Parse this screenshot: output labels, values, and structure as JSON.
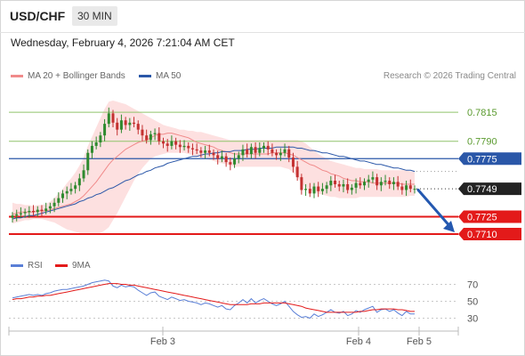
{
  "header": {
    "symbol": "USD/CHF",
    "timeframe": "30 MIN"
  },
  "datetime": "Wednesday, February 4, 2026 7:21:04 AM CET",
  "legend": {
    "ma20": {
      "label": "MA 20 + Bollinger Bands",
      "color": "#f08a8a"
    },
    "ma50": {
      "label": "MA 50",
      "color": "#2a57a8"
    }
  },
  "credit": "Research © 2026 Trading Central",
  "rsi_legend": {
    "rsi": {
      "label": "RSI",
      "color": "#5a7fd6"
    },
    "ma9": {
      "label": "9MA",
      "color": "#e31a1a"
    }
  },
  "colors": {
    "up": "#2f8a2f",
    "down": "#c43131",
    "resistance": "#8fc46b",
    "support": "#e31a1a",
    "pivot": "#2a57a8",
    "band": "#fde0e0"
  },
  "chart_data": [
    {
      "type": "candlestick",
      "price_ylim": [
        0.7697,
        0.7835
      ],
      "x_labels": [
        "Feb 3",
        "Feb 4",
        "Feb 5"
      ],
      "levels": [
        {
          "value": 0.7815,
          "label": "0.7815",
          "kind": "resistance"
        },
        {
          "value": 0.779,
          "label": "0.7790",
          "kind": "resistance"
        },
        {
          "value": 0.7775,
          "label": "0.7775",
          "kind": "pivot"
        },
        {
          "value": 0.7725,
          "label": "0.7725",
          "kind": "support"
        },
        {
          "value": 0.771,
          "label": "0.7710",
          "kind": "support"
        }
      ],
      "last_price": {
        "value": 0.7749,
        "label": "0.7749"
      },
      "forecast": {
        "from": 0.7748,
        "to": 0.771,
        "direction": "down"
      },
      "close": [
        0.7726,
        0.7727,
        0.7728,
        0.7729,
        0.773,
        0.7729,
        0.7731,
        0.773,
        0.7732,
        0.7734,
        0.7737,
        0.7741,
        0.7745,
        0.7747,
        0.7749,
        0.7752,
        0.7758,
        0.7765,
        0.778,
        0.7786,
        0.7789,
        0.7795,
        0.7805,
        0.7814,
        0.7806,
        0.78,
        0.7808,
        0.7804,
        0.7806,
        0.7805,
        0.78,
        0.7795,
        0.7791,
        0.7796,
        0.7797,
        0.779,
        0.7788,
        0.7786,
        0.779,
        0.7787,
        0.7785,
        0.7786,
        0.7784,
        0.7783,
        0.7782,
        0.778,
        0.7782,
        0.778,
        0.7778,
        0.7775,
        0.7777,
        0.7772,
        0.777,
        0.7775,
        0.7778,
        0.7783,
        0.7779,
        0.7785,
        0.778,
        0.7784,
        0.7786,
        0.7783,
        0.778,
        0.7778,
        0.778,
        0.7783,
        0.7776,
        0.7768,
        0.7759,
        0.7748,
        0.7749,
        0.7745,
        0.7751,
        0.7747,
        0.7749,
        0.7752,
        0.7756,
        0.7753,
        0.7751,
        0.7753,
        0.7748,
        0.775,
        0.7754,
        0.7752,
        0.7755,
        0.7757,
        0.7759,
        0.7752,
        0.7755,
        0.7756,
        0.7753,
        0.7755,
        0.7751,
        0.7748,
        0.7752,
        0.7749,
        0.7749
      ],
      "ma20": [
        0.7727,
        0.7728,
        0.7729,
        0.7729,
        0.7729,
        0.7729,
        0.773,
        0.773,
        0.773,
        0.7731,
        0.7732,
        0.7733,
        0.7734,
        0.7735,
        0.7736,
        0.7738,
        0.774,
        0.7743,
        0.7747,
        0.7751,
        0.7755,
        0.776,
        0.7765,
        0.777,
        0.7774,
        0.7777,
        0.778,
        0.7783,
        0.7785,
        0.7787,
        0.7789,
        0.779,
        0.7791,
        0.7793,
        0.7795,
        0.7796,
        0.7796,
        0.7797,
        0.7797,
        0.7796,
        0.7795,
        0.7794,
        0.7793,
        0.7791,
        0.7789,
        0.7788,
        0.7787,
        0.7786,
        0.7785,
        0.7783,
        0.7782,
        0.7781,
        0.778,
        0.7779,
        0.7779,
        0.7779,
        0.7779,
        0.7779,
        0.7779,
        0.7779,
        0.7779,
        0.7779,
        0.778,
        0.778,
        0.778,
        0.778,
        0.7779,
        0.7778,
        0.7776,
        0.7774,
        0.7772,
        0.777,
        0.7769,
        0.7767,
        0.7765,
        0.7764,
        0.7762,
        0.7761,
        0.776,
        0.7758,
        0.7757,
        0.7756,
        0.7756,
        0.7755,
        0.7755,
        0.7755,
        0.7754,
        0.7754,
        0.7754,
        0.7754,
        0.7754,
        0.7754,
        0.7754,
        0.7753,
        0.7753,
        0.7753,
        0.7753
      ],
      "bb_upper": [
        0.7737,
        0.7736,
        0.7736,
        0.7735,
        0.7735,
        0.7734,
        0.7735,
        0.7735,
        0.7736,
        0.7738,
        0.7741,
        0.7745,
        0.7749,
        0.7754,
        0.7758,
        0.7763,
        0.7769,
        0.7776,
        0.7786,
        0.7794,
        0.7802,
        0.781,
        0.7818,
        0.7824,
        0.7825,
        0.7824,
        0.7823,
        0.7822,
        0.782,
        0.7818,
        0.7816,
        0.7814,
        0.7812,
        0.781,
        0.7808,
        0.7806,
        0.7804,
        0.7803,
        0.7802,
        0.7801,
        0.78,
        0.78,
        0.7799,
        0.7799,
        0.7798,
        0.7798,
        0.7797,
        0.7796,
        0.7795,
        0.7794,
        0.7793,
        0.7792,
        0.7791,
        0.7791,
        0.7791,
        0.7791,
        0.7791,
        0.7791,
        0.7791,
        0.7791,
        0.7791,
        0.7791,
        0.7791,
        0.7791,
        0.7791,
        0.7791,
        0.7791,
        0.7791,
        0.7791,
        0.779,
        0.7788,
        0.7785,
        0.7782,
        0.7779,
        0.7777,
        0.7775,
        0.7773,
        0.7772,
        0.7771,
        0.777,
        0.7769,
        0.7768,
        0.7767,
        0.7767,
        0.7766,
        0.7766,
        0.7766,
        0.7766,
        0.7765,
        0.7765,
        0.7765,
        0.7765,
        0.7765,
        0.7765,
        0.7765,
        0.7764,
        0.7764
      ],
      "bb_lower": [
        0.7719,
        0.772,
        0.7721,
        0.7722,
        0.7722,
        0.7723,
        0.7723,
        0.7723,
        0.7722,
        0.7721,
        0.772,
        0.7718,
        0.7716,
        0.7714,
        0.7713,
        0.7712,
        0.7711,
        0.771,
        0.771,
        0.771,
        0.771,
        0.7711,
        0.7713,
        0.7716,
        0.7722,
        0.7728,
        0.7735,
        0.7742,
        0.7749,
        0.7756,
        0.7762,
        0.7767,
        0.7771,
        0.7775,
        0.7777,
        0.7778,
        0.7779,
        0.778,
        0.778,
        0.778,
        0.778,
        0.778,
        0.7779,
        0.7778,
        0.7777,
        0.7776,
        0.7775,
        0.7774,
        0.7773,
        0.7772,
        0.7771,
        0.777,
        0.7769,
        0.7768,
        0.7768,
        0.7768,
        0.7768,
        0.7768,
        0.7768,
        0.7768,
        0.7768,
        0.7768,
        0.7768,
        0.7768,
        0.7768,
        0.7767,
        0.7766,
        0.7763,
        0.7759,
        0.7754,
        0.775,
        0.7748,
        0.7746,
        0.7745,
        0.7744,
        0.7743,
        0.7742,
        0.7742,
        0.7741,
        0.7741,
        0.7741,
        0.7741,
        0.7741,
        0.7742,
        0.7742,
        0.7742,
        0.7742,
        0.7742,
        0.7742,
        0.7742,
        0.7742,
        0.7742,
        0.7742,
        0.7742,
        0.7742,
        0.7743,
        0.7743
      ],
      "ma50": [
        0.7723,
        0.7724,
        0.7724,
        0.7725,
        0.7726,
        0.7726,
        0.7727,
        0.7728,
        0.7729,
        0.773,
        0.7731,
        0.7732,
        0.7733,
        0.7734,
        0.7735,
        0.7736,
        0.7738,
        0.7739,
        0.7741,
        0.7742,
        0.7744,
        0.7745,
        0.7747,
        0.7749,
        0.775,
        0.7752,
        0.7754,
        0.7756,
        0.7757,
        0.7759,
        0.7761,
        0.7762,
        0.7764,
        0.7765,
        0.7767,
        0.7768,
        0.7769,
        0.7771,
        0.7772,
        0.7773,
        0.7774,
        0.7775,
        0.7776,
        0.7777,
        0.7777,
        0.7778,
        0.7779,
        0.7779,
        0.778,
        0.778,
        0.7781,
        0.7781,
        0.7781,
        0.7782,
        0.7782,
        0.7782,
        0.7783,
        0.7783,
        0.7783,
        0.7784,
        0.7784,
        0.7784,
        0.7784,
        0.7785,
        0.7785,
        0.7785,
        0.7785,
        0.7785,
        0.7784,
        0.7784,
        0.7783,
        0.7782,
        0.7782,
        0.7781,
        0.778,
        0.778,
        0.7779,
        0.7778,
        0.7777,
        0.7777,
        0.7776,
        0.7775,
        0.7774,
        0.7773,
        0.7773,
        0.7772,
        0.7771,
        0.777,
        0.777,
        0.7769,
        0.7768,
        0.7767,
        0.7767,
        0.7766,
        0.7765,
        0.7765,
        0.7764
      ]
    },
    {
      "type": "line",
      "rsi_ylim": [
        20,
        80
      ],
      "ticks": [
        70,
        50,
        30
      ],
      "series": [
        {
          "name": "RSI",
          "values": [
            54,
            55,
            56,
            57,
            58,
            57,
            58,
            57,
            59,
            60,
            62,
            63,
            64,
            64,
            65,
            66,
            67,
            68,
            70,
            72,
            73,
            74,
            75,
            74,
            68,
            66,
            69,
            67,
            68,
            67,
            63,
            60,
            57,
            60,
            61,
            56,
            54,
            52,
            55,
            53,
            51,
            52,
            50,
            49,
            48,
            46,
            48,
            47,
            45,
            43,
            45,
            41,
            40,
            45,
            48,
            52,
            48,
            53,
            48,
            51,
            53,
            50,
            47,
            45,
            47,
            50,
            44,
            38,
            34,
            31,
            32,
            30,
            35,
            32,
            34,
            37,
            40,
            37,
            36,
            38,
            33,
            35,
            39,
            37,
            40,
            42,
            44,
            37,
            40,
            41,
            38,
            40,
            36,
            33,
            38,
            35,
            35
          ]
        },
        {
          "name": "9MA",
          "values": [
            52,
            53,
            53,
            54,
            55,
            55,
            56,
            56,
            57,
            57,
            58,
            59,
            60,
            61,
            62,
            63,
            64,
            65,
            66,
            67,
            68,
            69,
            70,
            71,
            71,
            71,
            70,
            70,
            69,
            69,
            68,
            67,
            66,
            65,
            64,
            63,
            62,
            61,
            60,
            59,
            58,
            57,
            56,
            55,
            54,
            53,
            52,
            51,
            50,
            49,
            48,
            47,
            46,
            46,
            46,
            46,
            46,
            47,
            47,
            47,
            48,
            48,
            48,
            48,
            48,
            48,
            47,
            46,
            45,
            44,
            42,
            41,
            40,
            39,
            38,
            37,
            37,
            37,
            37,
            37,
            37,
            37,
            37,
            38,
            38,
            39,
            40,
            40,
            41,
            41,
            41,
            41,
            40,
            40,
            39,
            38,
            38
          ]
        }
      ]
    }
  ]
}
